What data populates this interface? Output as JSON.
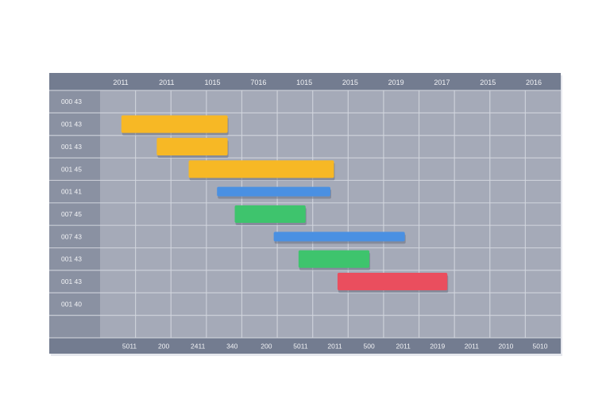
{
  "chart_data": {
    "type": "gantt",
    "title": "",
    "grid": true,
    "top_axis_labels": [
      "2011",
      "2011",
      "1015",
      "7016",
      "1015",
      "2015",
      "2019",
      "2017",
      "2015",
      "2016"
    ],
    "bottom_axis_labels": [
      "5011",
      "200",
      "2411",
      "340",
      "200",
      "5011",
      "2011",
      "500",
      "2011",
      "2019",
      "2011",
      "2010",
      "5010"
    ],
    "rows": [
      "000 43",
      "001 43",
      "001 43",
      "001 45",
      "001 41",
      "007 45",
      "007 43",
      "001 43",
      "001 43",
      "001 40",
      ""
    ],
    "tasks": [
      {
        "row": 1,
        "start": 0.6,
        "end": 3.6,
        "color": "#f7b825"
      },
      {
        "row": 2,
        "start": 1.6,
        "end": 3.6,
        "color": "#f7b825"
      },
      {
        "row": 3,
        "start": 2.5,
        "end": 6.6,
        "color": "#f7b825"
      },
      {
        "row": 4,
        "start": 3.3,
        "end": 6.5,
        "color": "#4a90e2"
      },
      {
        "row": 5,
        "start": 3.8,
        "end": 5.8,
        "color": "#3ec46d"
      },
      {
        "row": 6,
        "start": 4.9,
        "end": 8.6,
        "color": "#4a90e2"
      },
      {
        "row": 7,
        "start": 5.6,
        "end": 7.6,
        "color": "#3ec46d"
      },
      {
        "row": 8,
        "start": 6.7,
        "end": 9.8,
        "color": "#ea4e5e"
      }
    ],
    "colors": {
      "header": "#737c90",
      "row_label_bg": "#8a91a2",
      "plot_bg": "#a5aab8",
      "grid": "#d3d7df",
      "axis_text": "#f2f3f6"
    }
  }
}
